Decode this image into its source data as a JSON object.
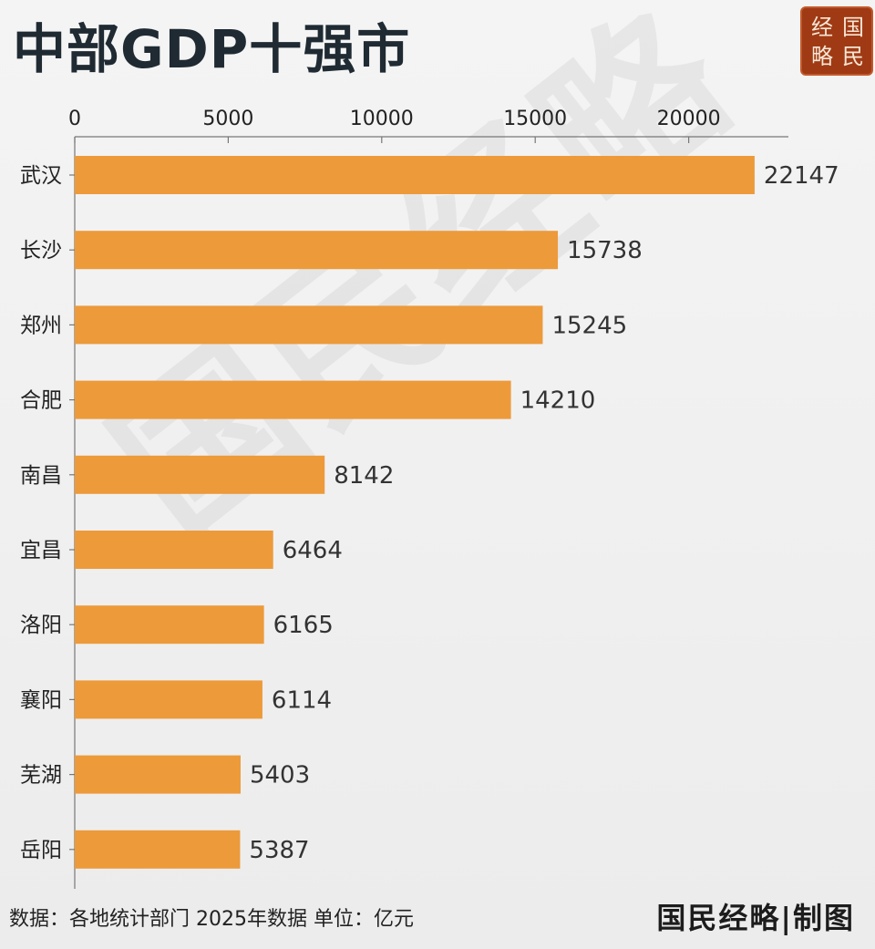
{
  "title": "中部GDP十强市",
  "seal": {
    "chars": [
      "经",
      "国",
      "略",
      "民"
    ],
    "color": "#a03a14"
  },
  "watermark": "国民经略",
  "footer": {
    "note": "数据：各地统计部门 2025年数据  单位：亿元",
    "brand": "国民经略|制图"
  },
  "chart_data": {
    "type": "bar",
    "orientation": "horizontal",
    "title": "中部GDP十强市",
    "categories": [
      "武汉",
      "长沙",
      "郑州",
      "合肥",
      "南昌",
      "宜昌",
      "洛阳",
      "襄阳",
      "芜湖",
      "岳阳"
    ],
    "values": [
      22147,
      15738,
      15245,
      14210,
      8142,
      6464,
      6165,
      6114,
      5403,
      5387
    ],
    "x_ticks": [
      0,
      5000,
      10000,
      15000,
      20000
    ],
    "xlim": [
      0,
      23000
    ],
    "x_axis_position": "top",
    "grid": false,
    "data_labels": true,
    "bar_color": "#ed9a3a"
  }
}
